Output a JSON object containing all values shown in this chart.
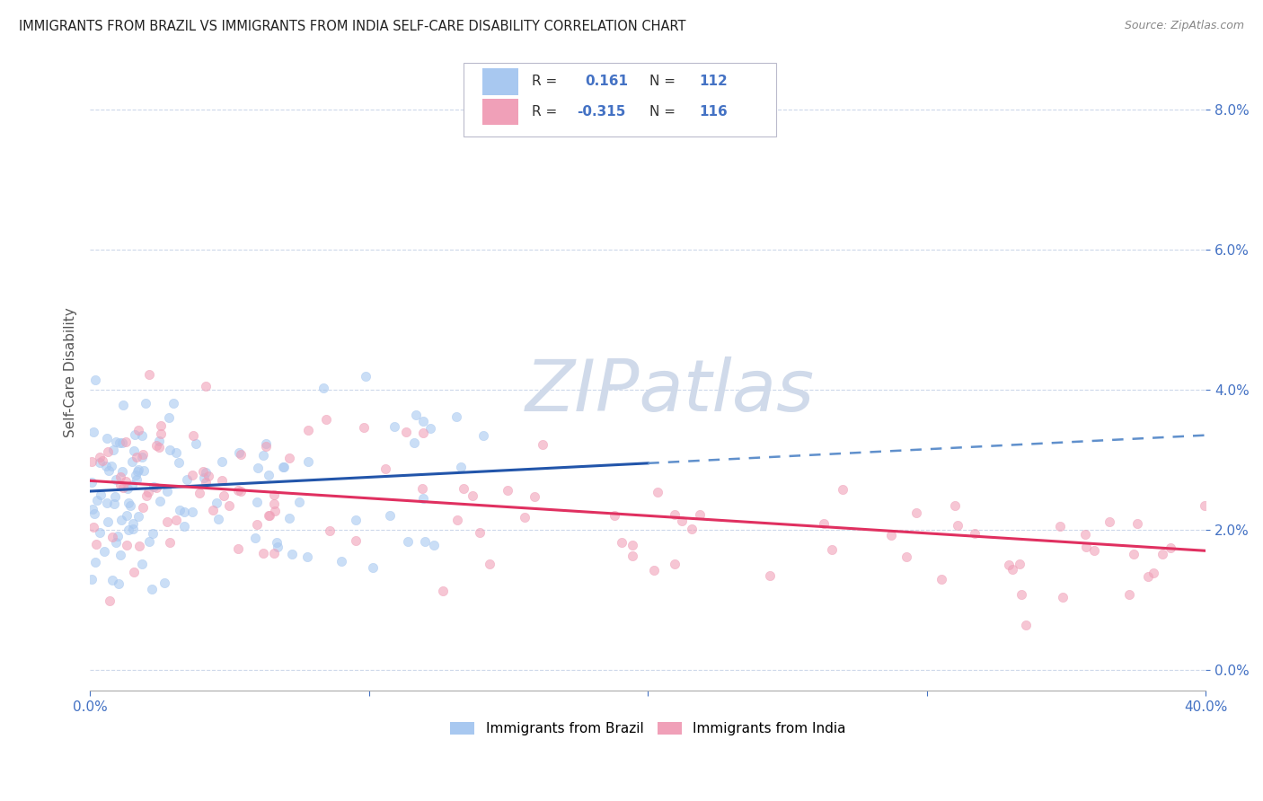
{
  "title": "IMMIGRANTS FROM BRAZIL VS IMMIGRANTS FROM INDIA SELF-CARE DISABILITY CORRELATION CHART",
  "source": "Source: ZipAtlas.com",
  "ylabel": "Self-Care Disability",
  "yticks": [
    "0.0%",
    "2.0%",
    "4.0%",
    "6.0%",
    "8.0%"
  ],
  "ytick_vals": [
    0.0,
    2.0,
    4.0,
    6.0,
    8.0
  ],
  "xlim": [
    0.0,
    40.0
  ],
  "ylim": [
    -0.3,
    8.8
  ],
  "brazil_R": 0.161,
  "brazil_N": 112,
  "india_R": -0.315,
  "india_N": 116,
  "brazil_color": "#a8c8f0",
  "india_color": "#f0a0b8",
  "brazil_line_color": "#2255aa",
  "india_line_color": "#e03060",
  "trend_ext_color": "#6090cc",
  "watermark_color": "#d0daea",
  "background_color": "#ffffff",
  "grid_color": "#c8d4e8",
  "title_color": "#222222",
  "axis_label_color": "#4472c4",
  "brazil_line_solid_end": 20.0,
  "brazil_line_start_y": 2.55,
  "brazil_line_end_y": 3.35,
  "brazil_line_ext_end_y": 4.1,
  "india_line_start_y": 2.7,
  "india_line_end_y": 1.7
}
